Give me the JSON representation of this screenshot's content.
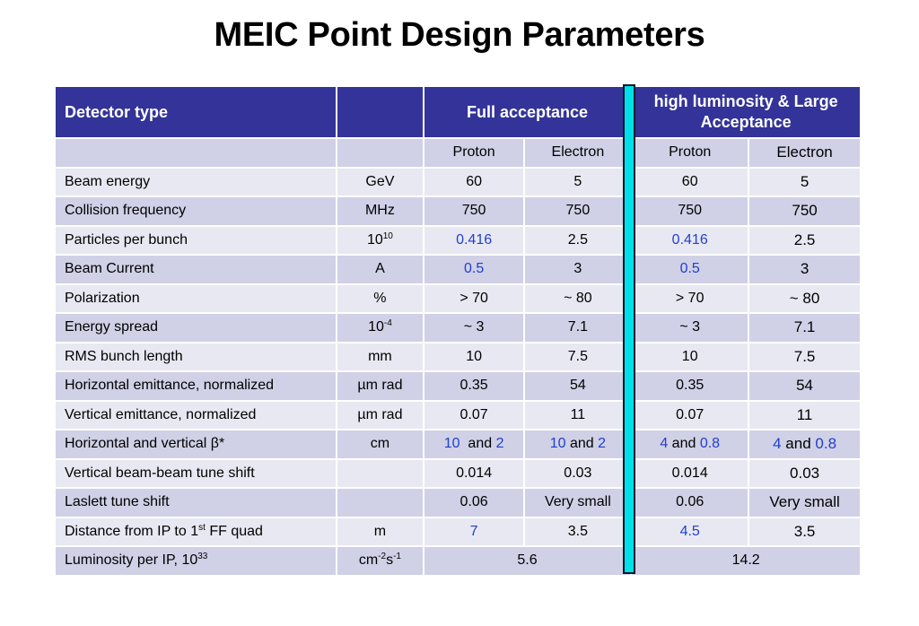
{
  "title": "MEIC Point Design Parameters",
  "header": {
    "detector_type": "Detector type",
    "unit": "",
    "full_acceptance": "Full acceptance",
    "high_lumi": "high luminosity & Large Acceptance"
  },
  "subheader": {
    "fa_proton": "Proton",
    "fa_electron": "Electron",
    "hl_proton": "Proton",
    "hl_electron": "Electron"
  },
  "rows": {
    "beam_energy": {
      "param": "Beam energy",
      "unit": "GeV",
      "fa_p": "60",
      "fa_e": "5",
      "hl_p": "60",
      "hl_e": "5"
    },
    "collision_frequency": {
      "param": "Collision frequency",
      "unit": "MHz",
      "fa_p": "750",
      "fa_e": "750",
      "hl_p": "750",
      "hl_e": "750"
    },
    "particles_per_bunch": {
      "param": "Particles per bunch",
      "unit_base": "10",
      "unit_exp": "10",
      "fa_p": "0.416",
      "fa_e": "2.5",
      "hl_p": "0.416",
      "hl_e": "2.5"
    },
    "beam_current": {
      "param": "Beam Current",
      "unit": "A",
      "fa_p": "0.5",
      "fa_e": "3",
      "hl_p": "0.5",
      "hl_e": "3"
    },
    "polarization": {
      "param": "Polarization",
      "unit": "%",
      "fa_p": "> 70",
      "fa_e": "~ 80",
      "hl_p": "> 70",
      "hl_e": "~ 80"
    },
    "energy_spread": {
      "param": "Energy spread",
      "unit_base": "10",
      "unit_exp": "-4",
      "fa_p": "~ 3",
      "fa_e": "7.1",
      "hl_p": "~ 3",
      "hl_e": "7.1"
    },
    "rms_bunch_length": {
      "param": "RMS bunch length",
      "unit": "mm",
      "fa_p": "10",
      "fa_e": "7.5",
      "hl_p": "10",
      "hl_e": "7.5"
    },
    "horizontal_emittance": {
      "param": "Horizontal emittance, normalized",
      "unit": "µm rad",
      "fa_p": "0.35",
      "fa_e": "54",
      "hl_p": "0.35",
      "hl_e": "54"
    },
    "vertical_emittance": {
      "param": "Vertical emittance, normalized",
      "unit": "µm rad",
      "fa_p": "0.07",
      "fa_e": "11",
      "hl_p": "0.07",
      "hl_e": "11"
    },
    "beta_star": {
      "param": "Horizontal and vertical β*",
      "unit": "cm",
      "fa_p_h": "10",
      "fa_p_v": "2",
      "fa_e_h": "10",
      "fa_e_v": "2",
      "hl_p_h": "4",
      "hl_p_v": "0.8",
      "hl_e_h": "4",
      "hl_e_v": "0.8",
      "and": "and"
    },
    "beam_beam_tune_shift": {
      "param": "Vertical beam-beam tune shift",
      "unit": "",
      "fa_p": "0.014",
      "fa_e": "0.03",
      "hl_p": "0.014",
      "hl_e": "0.03"
    },
    "laslett_tune_shift": {
      "param": "Laslett tune shift",
      "unit": "",
      "fa_p": "0.06",
      "fa_e": "Very small",
      "hl_p": "0.06",
      "hl_e": "Very small"
    },
    "distance_ff_quad": {
      "param_pre": "Distance from IP to 1",
      "param_sup": "st",
      "param_post": " FF quad",
      "unit": "m",
      "fa_p": "7",
      "fa_e": "3.5",
      "hl_p": "4.5",
      "hl_e": "3.5"
    },
    "luminosity": {
      "param_pre": "Luminosity per IP, 10",
      "param_sup": "33",
      "unit_a": "cm",
      "unit_a_exp": "-2",
      "unit_b": "s",
      "unit_b_exp": "-1",
      "fa": "5.6",
      "hl": "14.2"
    }
  },
  "colors": {
    "header_bg": "#333399",
    "row_dark": "#d0d0e6",
    "row_light": "#e8e8f2",
    "highlight_text": "#1f3fcf",
    "divider": "#00e0e8"
  }
}
